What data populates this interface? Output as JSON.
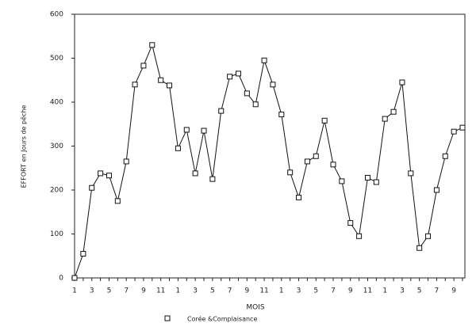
{
  "chart_data": {
    "type": "line",
    "y_label": "EFFORT en Jours de pêche",
    "x_label": "MOIS",
    "categories": [
      "1",
      null,
      "3",
      null,
      "5",
      null,
      "7",
      null,
      "9",
      null,
      "11",
      null,
      "1",
      null,
      "3",
      null,
      "5",
      null,
      "7",
      null,
      "9",
      null,
      "11",
      null,
      "1",
      null,
      "3",
      null,
      "5",
      null,
      "7",
      null,
      "9",
      null,
      "11",
      null,
      "1",
      null,
      "3",
      null,
      "5",
      null,
      "7",
      null,
      "9",
      null
    ],
    "series": [
      {
        "name": "Corée &Complaisance",
        "color": "#111111",
        "values": [
          0,
          55,
          205,
          238,
          233,
          175,
          265,
          440,
          483,
          530,
          450,
          438,
          295,
          337,
          238,
          335,
          225,
          380,
          458,
          465,
          420,
          395,
          495,
          440,
          372,
          240,
          183,
          265,
          277,
          358,
          258,
          220,
          125,
          95,
          228,
          218,
          362,
          378,
          445,
          238,
          68,
          95,
          200,
          277,
          333,
          342
        ]
      }
    ],
    "ylim": [
      0,
      600
    ],
    "yticks": [
      0,
      100,
      200,
      300,
      400,
      500,
      600
    ],
    "grid": false
  }
}
